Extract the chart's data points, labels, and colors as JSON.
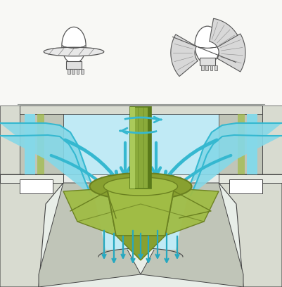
{
  "bg_color": "#f8f8f5",
  "shaft_color": "#8aaa3a",
  "shaft_dark": "#5a7a1a",
  "shaft_light": "#aaca5a",
  "water_color": "#35b8d0",
  "water_light": "#85d8e8",
  "water_pale": "#c0eaf5",
  "concrete_color": "#d8dbd0",
  "concrete_mid": "#c0c5b8",
  "concrete_dark": "#a8b0a0",
  "concrete_shadow": "#9098888",
  "runner_color": "#a0bc45",
  "runner_mid": "#88a030",
  "runner_dark": "#6a8020",
  "arrow_color": "#25a8c0",
  "line_color": "#444444",
  "sketch_color": "#555555",
  "fig_width": 4.01,
  "fig_height": 4.08,
  "dpi": 100
}
